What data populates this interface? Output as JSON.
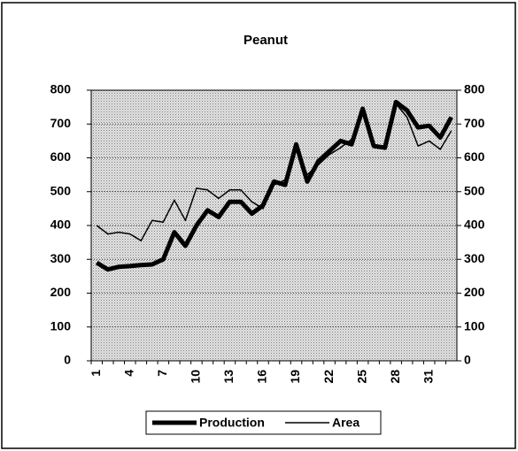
{
  "chart_data": {
    "type": "line",
    "title": "Peanut",
    "categories": [
      "1",
      null,
      null,
      "4",
      null,
      null,
      "7",
      null,
      null,
      "10",
      null,
      null,
      "13",
      null,
      null,
      "16",
      null,
      null,
      "19",
      null,
      null,
      "22",
      null,
      null,
      "25",
      null,
      null,
      "28",
      null,
      null,
      "31",
      null,
      null
    ],
    "series": [
      {
        "name": "Production",
        "color": "#000000",
        "values": [
          290,
          270,
          278,
          280,
          283,
          285,
          300,
          380,
          340,
          400,
          445,
          425,
          470,
          470,
          435,
          460,
          530,
          520,
          640,
          530,
          590,
          620,
          650,
          640,
          745,
          635,
          630,
          765,
          740,
          690,
          695,
          660,
          720
        ]
      },
      {
        "name": "Area",
        "color": "#000000",
        "axis": "y2",
        "values": [
          400,
          375,
          380,
          375,
          355,
          415,
          410,
          475,
          415,
          510,
          505,
          480,
          505,
          505,
          470,
          450,
          520,
          535,
          630,
          550,
          580,
          610,
          630,
          655,
          730,
          640,
          625,
          760,
          720,
          635,
          650,
          625,
          680
        ]
      }
    ],
    "ylim": [
      0,
      800
    ],
    "yticks": [
      0,
      100,
      200,
      300,
      400,
      500,
      600,
      700,
      800
    ],
    "y2lim": [
      0,
      800
    ],
    "y2ticks": [
      0,
      100,
      200,
      300,
      400,
      500,
      600,
      700,
      800
    ],
    "grid": true,
    "legend": "bottom"
  }
}
